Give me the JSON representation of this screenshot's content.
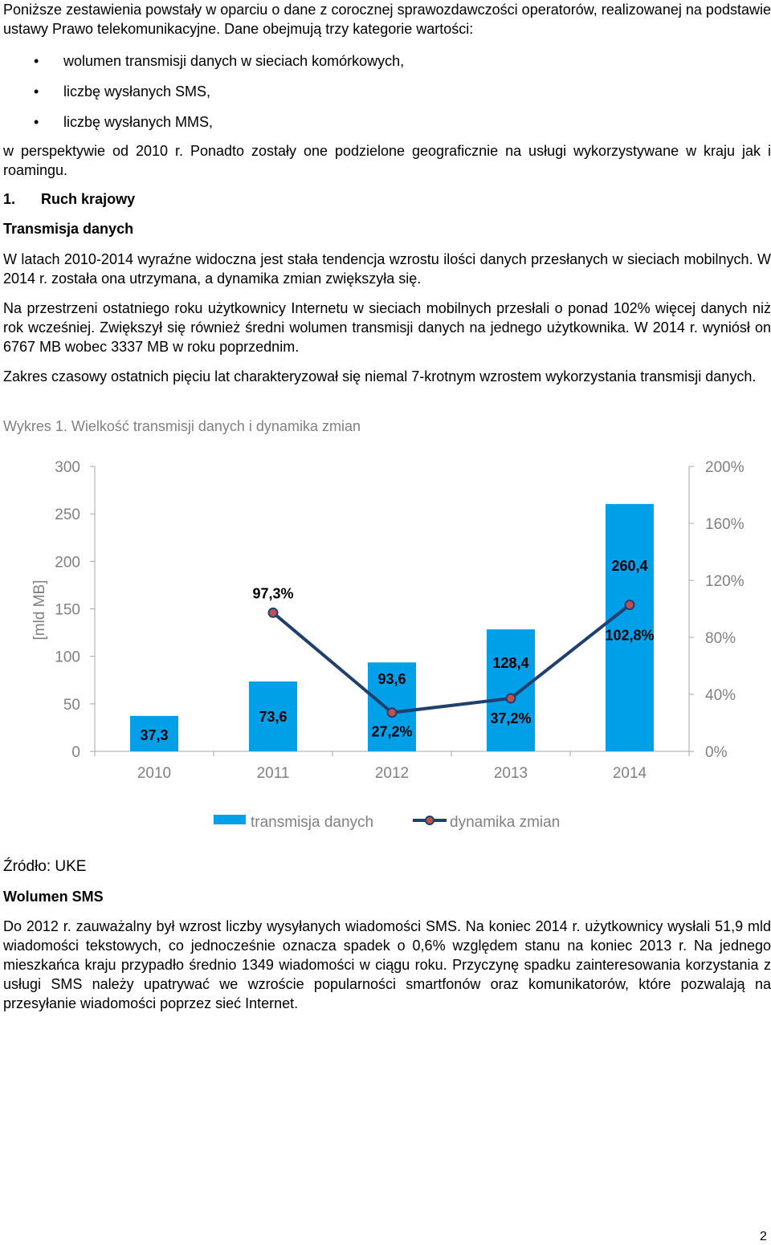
{
  "intro": {
    "para1": "Poniższe zestawienia powstały w oparciu o dane z corocznej sprawozdawczości operatorów, realizowanej na podstawie ustawy Prawo telekomunikacyjne. Dane obejmują trzy kategorie wartości:",
    "bullets": [
      "wolumen transmisji danych w sieciach komórkowych,",
      "liczbę wysłanych SMS,",
      "liczbę wysłanych MMS,"
    ],
    "para2": "w perspektywie od 2010 r. Ponadto zostały one podzielone geograficznie na usługi wykorzystywane w kraju jak i roamingu."
  },
  "section": {
    "number": "1.",
    "title": "Ruch krajowy"
  },
  "subsection1": {
    "title": "Transmisja danych",
    "para1": "W latach 2010-2014 wyraźne widoczna jest stała tendencja wzrostu ilości danych przesłanych w sieciach mobilnych. W 2014 r. została ona utrzymana, a dynamika zmian zwiększyła się.",
    "para2": "Na przestrzeni ostatniego roku użytkownicy Internetu w sieciach mobilnych przesłali o ponad 102% więcej danych niż rok wcześniej. Zwiększył się również średni wolumen transmisji danych na jednego użytkownika. W 2014 r. wyniósł on 6767 MB wobec 3337 MB w roku poprzednim.",
    "para3": "Zakres czasowy ostatnich pięciu lat charakteryzował się niemal 7-krotnym wzrostem wykorzystania transmisji danych."
  },
  "chart_caption": "Wykres 1. Wielkość transmisji danych i dynamika zmian",
  "chart_data": {
    "type": "bar",
    "categories": [
      "2010",
      "2011",
      "2012",
      "2013",
      "2014"
    ],
    "series": [
      {
        "name": "transmisja danych",
        "type": "bar",
        "axis": "left",
        "values": [
          37.3,
          73.6,
          93.6,
          128.4,
          260.4
        ],
        "labels": [
          "37,3",
          "73,6",
          "93,6",
          "128,4",
          "260,4"
        ],
        "color": "#00A0E8"
      },
      {
        "name": "dynamika zmian",
        "type": "line",
        "axis": "right",
        "values": [
          null,
          97.3,
          27.2,
          37.2,
          102.8
        ],
        "labels": [
          "",
          "97,3%",
          "27,2%",
          "37,2%",
          "102,8%"
        ],
        "color": "#1F3F6E",
        "marker_color": "#C0504D"
      }
    ],
    "ylabel": "[mld MB]",
    "ylim": [
      0,
      300
    ],
    "y_ticks": [
      "0",
      "50",
      "100",
      "150",
      "200",
      "250",
      "300"
    ],
    "y_ticks_values": [
      0,
      50,
      100,
      150,
      200,
      250,
      300
    ],
    "y2lim": [
      0,
      200
    ],
    "y2_ticks": [
      "0%",
      "40%",
      "80%",
      "120%",
      "160%",
      "200%"
    ],
    "y2_ticks_values": [
      0,
      40,
      80,
      120,
      160,
      200
    ],
    "grid": false,
    "legend_position": "bottom"
  },
  "source": "Źródło: UKE",
  "subsection2": {
    "title": "Wolumen SMS",
    "para1": "Do 2012 r. zauważalny był wzrost liczby wysyłanych wiadomości SMS. Na koniec 2014 r. użytkownicy wysłali 51,9 mld wiadomości tekstowych, co jednocześnie oznacza spadek o 0,6% względem stanu na koniec 2013 r. Na jednego mieszkańca kraju przypadło średnio 1349 wiadomości w ciągu roku. Przyczynę spadku zainteresowania korzystania z usługi SMS należy upatrywać we wzroście popularności smartfonów oraz komunikatorów, które pozwalają na przesyłanie wiadomości poprzez sieć Internet."
  },
  "page_number": "2"
}
